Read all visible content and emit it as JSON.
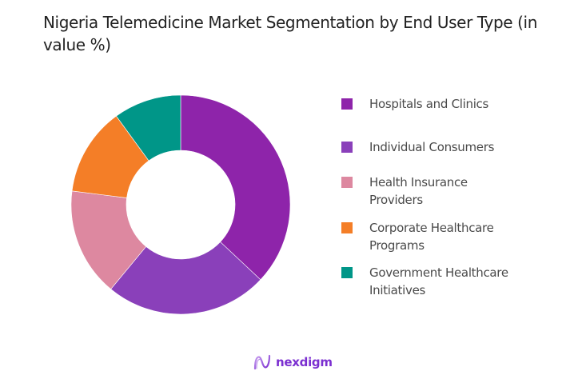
{
  "title": "Nigeria Telemedicine Market Segmentation by End User Type (in value %)",
  "chart_data": {
    "type": "pie",
    "subtype": "donut",
    "title": "Nigeria Telemedicine Market Segmentation by End User Type (in value %)",
    "categories": [
      "Hospitals and Clinics",
      "Individual Consumers",
      "Health Insurance Providers",
      "Corporate Healthcare Programs",
      "Government Healthcare Initiatives"
    ],
    "values": [
      37,
      24,
      16,
      13,
      10
    ],
    "colors": [
      "#8E24AA",
      "#8A40BA",
      "#DD88A0",
      "#F47E27",
      "#009688"
    ],
    "start_angle_deg": 0,
    "direction": "clockwise",
    "legend_position": "right",
    "data_labels": false
  },
  "legend": {
    "items": [
      {
        "label": "Hospitals and Clinics",
        "color": "#8E24AA"
      },
      {
        "label": "Individual Consumers",
        "color": "#8A40BA"
      },
      {
        "label": "Health Insurance Providers",
        "color": "#DD88A0"
      },
      {
        "label": "Corporate Healthcare Programs",
        "color": "#F47E27"
      },
      {
        "label": "Government Healthcare Initiatives",
        "color": "#009688"
      }
    ]
  },
  "logo": {
    "text": "nexdigm"
  }
}
